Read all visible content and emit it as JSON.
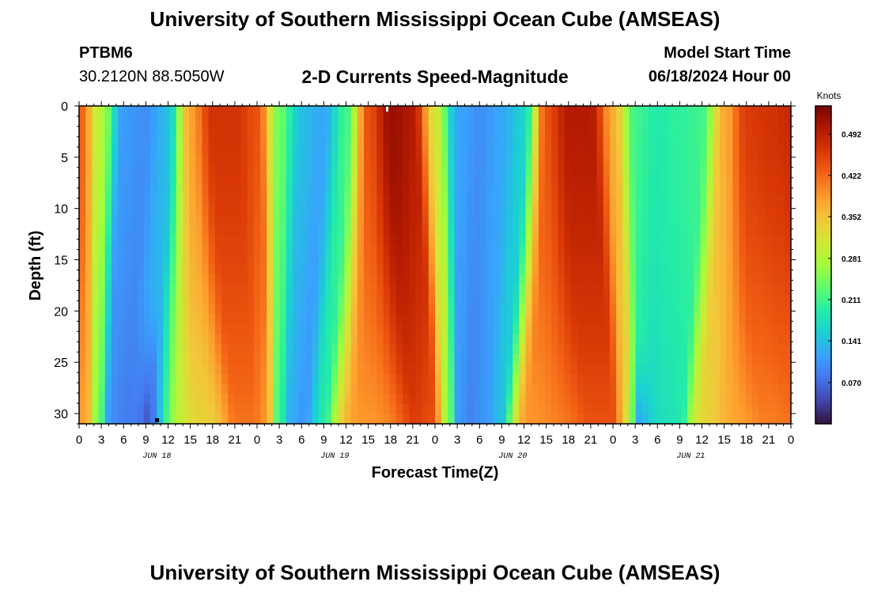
{
  "header": {
    "title": "University of Southern Mississippi Ocean Cube (AMSEAS)",
    "station": "PTBM6",
    "coords": "30.2120N  88.5050W",
    "subtitle": "2-D Currents Speed-Magnitude",
    "model_start_label": "Model Start Time",
    "model_start_value": "06/18/2024 Hour 00"
  },
  "footer": {
    "title": "University of Southern Mississippi Ocean Cube (AMSEAS)"
  },
  "chart_data": {
    "type": "heatmap",
    "xlabel": "Forecast Time(Z)",
    "ylabel": "Depth (ft)",
    "x_range_hours": [
      0,
      96
    ],
    "y_range_ft": [
      0,
      31
    ],
    "x_tick_labels": [
      "0",
      "3",
      "6",
      "9",
      "12",
      "15",
      "18",
      "21",
      "0",
      "3",
      "6",
      "9",
      "12",
      "15",
      "18",
      "21",
      "0",
      "3",
      "6",
      "9",
      "12",
      "15",
      "18",
      "21",
      "0",
      "3",
      "6",
      "9",
      "12",
      "15",
      "18",
      "21",
      "0"
    ],
    "y_ticks": [
      0,
      5,
      10,
      15,
      20,
      25,
      30
    ],
    "day_labels": [
      "JUN 18",
      "JUN 19",
      "JUN 20",
      "JUN 21"
    ],
    "colorbar": {
      "unit": "Knots",
      "range": [
        0.0,
        0.54
      ],
      "tick_values": [
        0.07,
        0.141,
        0.211,
        0.281,
        0.352,
        0.422,
        0.492
      ],
      "tick_labels": [
        "0.070",
        "0.141",
        "0.211",
        "0.281",
        "0.352",
        "0.422",
        "0.492"
      ],
      "colors": [
        "#30123b",
        "#4145ab",
        "#4675ed",
        "#39a2fc",
        "#1bcfd4",
        "#24eca6",
        "#61fc6c",
        "#a4fc3b",
        "#d1e834",
        "#f3c63a",
        "#fe9b2d",
        "#f36315",
        "#d93806",
        "#b11901",
        "#7a0402"
      ]
    },
    "surface_speed_profile": {
      "hours": [
        0,
        3,
        6,
        9,
        12,
        15,
        18,
        21,
        24,
        27,
        30,
        33,
        36,
        39,
        42,
        45,
        48,
        51,
        54,
        57,
        60,
        63,
        66,
        69,
        72,
        75,
        78,
        81,
        84,
        87,
        90,
        93,
        96
      ],
      "knots": [
        0.43,
        0.28,
        0.11,
        0.1,
        0.14,
        0.38,
        0.47,
        0.47,
        0.44,
        0.24,
        0.14,
        0.12,
        0.21,
        0.44,
        0.52,
        0.5,
        0.31,
        0.12,
        0.1,
        0.12,
        0.16,
        0.44,
        0.5,
        0.5,
        0.37,
        0.21,
        0.19,
        0.2,
        0.21,
        0.37,
        0.46,
        0.47,
        0.48
      ]
    }
  }
}
